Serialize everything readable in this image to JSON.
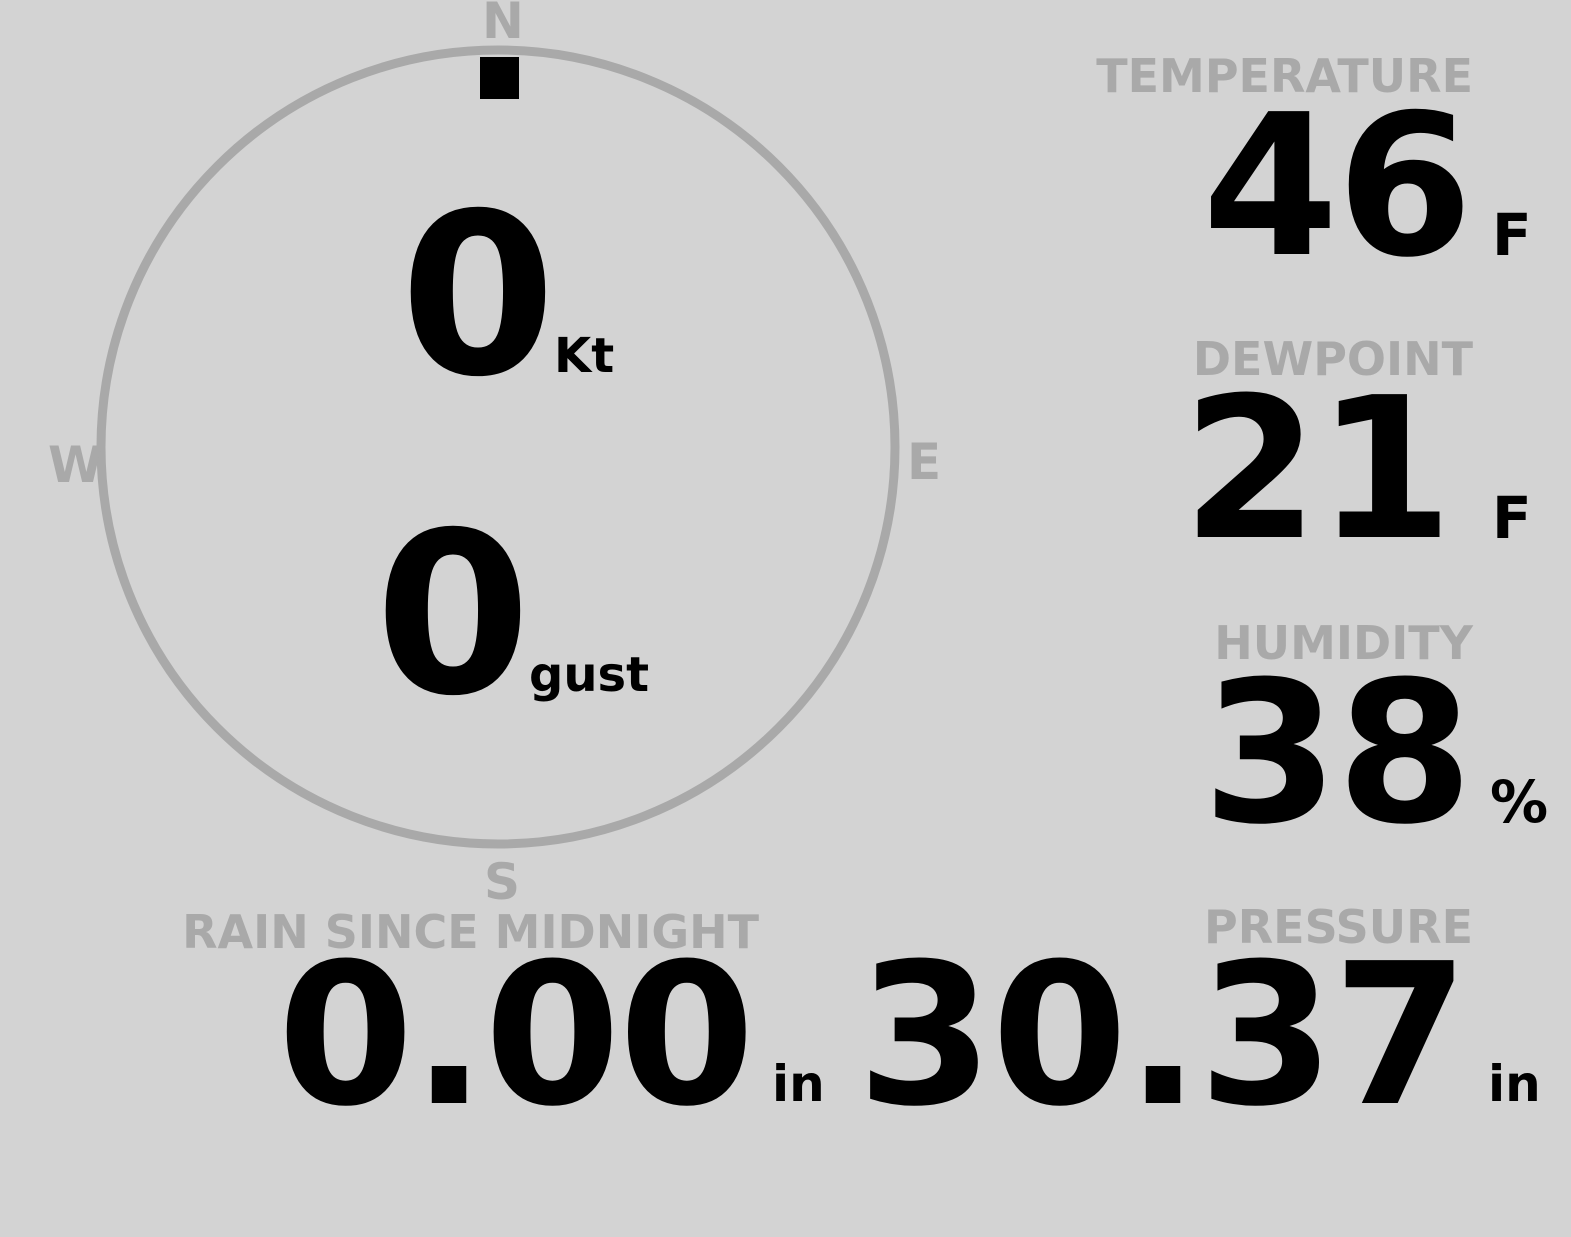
{
  "wind": {
    "compass_labels": {
      "n": "N",
      "e": "E",
      "s": "S",
      "w": "W"
    },
    "direction_deg": 0,
    "speed": "0",
    "speed_unit": "Kt",
    "gust": "0",
    "gust_unit": "gust"
  },
  "temperature": {
    "label": "TEMPERATURE",
    "value": "46",
    "unit": "F"
  },
  "dewpoint": {
    "label": "DEWPOINT",
    "value": "21",
    "unit": "F"
  },
  "humidity": {
    "label": "HUMIDITY",
    "value": "38",
    "unit": "%"
  },
  "rain": {
    "label": "RAIN SINCE MIDNIGHT",
    "value": "0.00",
    "unit": "in"
  },
  "pressure": {
    "label": "PRESSURE",
    "value": "30.37",
    "unit": "in"
  },
  "colors": {
    "background": "#d3d3d3",
    "label": "#a9a9a9",
    "value": "#000000"
  }
}
